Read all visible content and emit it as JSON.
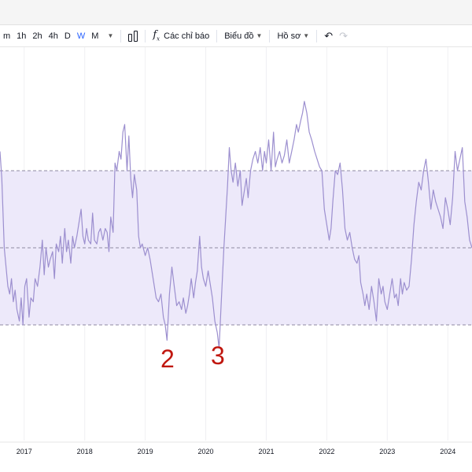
{
  "toolbar": {
    "intervals": [
      {
        "label": "m",
        "active": false
      },
      {
        "label": "1h",
        "active": false
      },
      {
        "label": "2h",
        "active": false
      },
      {
        "label": "4h",
        "active": false
      },
      {
        "label": "D",
        "active": false
      },
      {
        "label": "W",
        "active": true
      },
      {
        "label": "M",
        "active": false
      }
    ],
    "indicators_label": "Các chỉ báo",
    "chart_label": "Biểu đồ",
    "profile_label": "Hồ sơ"
  },
  "annotations": {
    "first": "2",
    "second": "3"
  },
  "colors": {
    "line": "#9c8fcf",
    "band_fill": "#ede9fa",
    "band_line": "#8f8aa3",
    "accent": "#2962ff",
    "annotation": "#c0170f"
  },
  "chart_data": {
    "type": "line",
    "x_axis_labels": [
      "2017",
      "2018",
      "2019",
      "2020",
      "2021",
      "2022",
      "2023",
      "2024"
    ],
    "x_range": [
      2016.6,
      2024.4
    ],
    "y_range": [
      0,
      100
    ],
    "bands": {
      "upper": 70,
      "middle": 50,
      "lower": 30
    },
    "series": [
      {
        "points": [
          [
            2016.6,
            75
          ],
          [
            2016.63,
            68
          ],
          [
            2016.67,
            50
          ],
          [
            2016.7,
            45
          ],
          [
            2016.73,
            40
          ],
          [
            2016.76,
            38
          ],
          [
            2016.79,
            42
          ],
          [
            2016.82,
            36
          ],
          [
            2016.85,
            39
          ],
          [
            2016.88,
            34
          ],
          [
            2016.92,
            31
          ],
          [
            2016.95,
            37
          ],
          [
            2016.98,
            30
          ],
          [
            2017.01,
            40
          ],
          [
            2017.04,
            42
          ],
          [
            2017.08,
            32
          ],
          [
            2017.11,
            37
          ],
          [
            2017.15,
            36
          ],
          [
            2017.18,
            42
          ],
          [
            2017.22,
            40
          ],
          [
            2017.26,
            45
          ],
          [
            2017.3,
            52
          ],
          [
            2017.33,
            43
          ],
          [
            2017.36,
            50
          ],
          [
            2017.4,
            45
          ],
          [
            2017.43,
            47
          ],
          [
            2017.47,
            49
          ],
          [
            2017.5,
            42
          ],
          [
            2017.53,
            51
          ],
          [
            2017.57,
            49
          ],
          [
            2017.6,
            53
          ],
          [
            2017.63,
            46
          ],
          [
            2017.67,
            55
          ],
          [
            2017.7,
            49
          ],
          [
            2017.73,
            52
          ],
          [
            2017.77,
            46
          ],
          [
            2017.8,
            53
          ],
          [
            2017.83,
            50
          ],
          [
            2017.87,
            53
          ],
          [
            2017.9,
            56
          ],
          [
            2017.94,
            60
          ],
          [
            2017.97,
            53
          ],
          [
            2018.0,
            51
          ],
          [
            2018.03,
            55
          ],
          [
            2018.06,
            52
          ],
          [
            2018.1,
            51
          ],
          [
            2018.13,
            59
          ],
          [
            2018.16,
            52
          ],
          [
            2018.2,
            51
          ],
          [
            2018.23,
            54
          ],
          [
            2018.26,
            55
          ],
          [
            2018.3,
            52
          ],
          [
            2018.34,
            55
          ],
          [
            2018.37,
            54
          ],
          [
            2018.4,
            49
          ],
          [
            2018.43,
            58
          ],
          [
            2018.47,
            54
          ],
          [
            2018.5,
            72
          ],
          [
            2018.53,
            70
          ],
          [
            2018.57,
            75
          ],
          [
            2018.6,
            73
          ],
          [
            2018.63,
            80
          ],
          [
            2018.66,
            82
          ],
          [
            2018.7,
            70
          ],
          [
            2018.73,
            79
          ],
          [
            2018.76,
            68
          ],
          [
            2018.79,
            63
          ],
          [
            2018.82,
            69
          ],
          [
            2018.86,
            65
          ],
          [
            2018.89,
            53
          ],
          [
            2018.92,
            50
          ],
          [
            2018.95,
            51
          ],
          [
            2019.0,
            48
          ],
          [
            2019.04,
            50
          ],
          [
            2019.08,
            47
          ],
          [
            2019.11,
            44
          ],
          [
            2019.15,
            40
          ],
          [
            2019.18,
            37
          ],
          [
            2019.22,
            36
          ],
          [
            2019.26,
            38
          ],
          [
            2019.3,
            32
          ],
          [
            2019.33,
            30
          ],
          [
            2019.36,
            26
          ],
          [
            2019.4,
            38
          ],
          [
            2019.44,
            45
          ],
          [
            2019.48,
            40
          ],
          [
            2019.52,
            35
          ],
          [
            2019.56,
            36
          ],
          [
            2019.6,
            34
          ],
          [
            2019.63,
            37
          ],
          [
            2019.67,
            33
          ],
          [
            2019.7,
            35
          ],
          [
            2019.73,
            38
          ],
          [
            2019.76,
            42
          ],
          [
            2019.8,
            37
          ],
          [
            2019.83,
            41
          ],
          [
            2019.86,
            44
          ],
          [
            2019.9,
            53
          ],
          [
            2019.93,
            45
          ],
          [
            2019.96,
            42
          ],
          [
            2020.0,
            40
          ],
          [
            2020.04,
            44
          ],
          [
            2020.08,
            40
          ],
          [
            2020.11,
            37
          ],
          [
            2020.15,
            31
          ],
          [
            2020.19,
            28
          ],
          [
            2020.22,
            24
          ],
          [
            2020.26,
            37
          ],
          [
            2020.3,
            50
          ],
          [
            2020.33,
            58
          ],
          [
            2020.36,
            66
          ],
          [
            2020.39,
            76
          ],
          [
            2020.42,
            70
          ],
          [
            2020.45,
            67
          ],
          [
            2020.49,
            72
          ],
          [
            2020.53,
            66
          ],
          [
            2020.57,
            70
          ],
          [
            2020.6,
            61
          ],
          [
            2020.63,
            64
          ],
          [
            2020.67,
            68
          ],
          [
            2020.7,
            63
          ],
          [
            2020.74,
            70
          ],
          [
            2020.78,
            73
          ],
          [
            2020.82,
            75
          ],
          [
            2020.86,
            72
          ],
          [
            2020.9,
            76
          ],
          [
            2020.94,
            70
          ],
          [
            2020.97,
            75
          ],
          [
            2021.0,
            72
          ],
          [
            2021.04,
            78
          ],
          [
            2021.08,
            70
          ],
          [
            2021.12,
            80
          ],
          [
            2021.15,
            71
          ],
          [
            2021.18,
            73
          ],
          [
            2021.22,
            75
          ],
          [
            2021.26,
            72
          ],
          [
            2021.3,
            74
          ],
          [
            2021.34,
            78
          ],
          [
            2021.38,
            72
          ],
          [
            2021.42,
            75
          ],
          [
            2021.46,
            78
          ],
          [
            2021.5,
            82
          ],
          [
            2021.53,
            80
          ],
          [
            2021.57,
            83
          ],
          [
            2021.6,
            85
          ],
          [
            2021.63,
            88
          ],
          [
            2021.67,
            85
          ],
          [
            2021.71,
            80
          ],
          [
            2021.75,
            78
          ],
          [
            2021.8,
            75
          ],
          [
            2021.84,
            73
          ],
          [
            2021.88,
            71
          ],
          [
            2021.92,
            70
          ],
          [
            2021.96,
            60
          ],
          [
            2022.0,
            56
          ],
          [
            2022.04,
            52
          ],
          [
            2022.07,
            55
          ],
          [
            2022.1,
            62
          ],
          [
            2022.14,
            70
          ],
          [
            2022.18,
            69
          ],
          [
            2022.22,
            72
          ],
          [
            2022.26,
            65
          ],
          [
            2022.3,
            55
          ],
          [
            2022.34,
            52
          ],
          [
            2022.38,
            54
          ],
          [
            2022.42,
            50
          ],
          [
            2022.46,
            47
          ],
          [
            2022.5,
            46
          ],
          [
            2022.53,
            48
          ],
          [
            2022.56,
            41
          ],
          [
            2022.6,
            38
          ],
          [
            2022.63,
            35
          ],
          [
            2022.66,
            38
          ],
          [
            2022.7,
            34
          ],
          [
            2022.74,
            40
          ],
          [
            2022.78,
            36
          ],
          [
            2022.82,
            31
          ],
          [
            2022.86,
            42
          ],
          [
            2022.9,
            38
          ],
          [
            2022.93,
            40
          ],
          [
            2022.96,
            36
          ],
          [
            2023.0,
            34
          ],
          [
            2023.04,
            38
          ],
          [
            2023.08,
            42
          ],
          [
            2023.12,
            37
          ],
          [
            2023.15,
            38
          ],
          [
            2023.18,
            35
          ],
          [
            2023.22,
            42
          ],
          [
            2023.25,
            38
          ],
          [
            2023.28,
            41
          ],
          [
            2023.32,
            39
          ],
          [
            2023.36,
            40
          ],
          [
            2023.4,
            47
          ],
          [
            2023.44,
            56
          ],
          [
            2023.48,
            62
          ],
          [
            2023.52,
            67
          ],
          [
            2023.56,
            65
          ],
          [
            2023.6,
            70
          ],
          [
            2023.64,
            73
          ],
          [
            2023.68,
            67
          ],
          [
            2023.72,
            60
          ],
          [
            2023.76,
            65
          ],
          [
            2023.8,
            62
          ],
          [
            2023.84,
            60
          ],
          [
            2023.88,
            58
          ],
          [
            2023.92,
            55
          ],
          [
            2023.96,
            63
          ],
          [
            2024.0,
            60
          ],
          [
            2024.04,
            56
          ],
          [
            2024.08,
            63
          ],
          [
            2024.12,
            75
          ],
          [
            2024.16,
            70
          ],
          [
            2024.2,
            73
          ],
          [
            2024.24,
            76
          ],
          [
            2024.28,
            62
          ],
          [
            2024.32,
            58
          ],
          [
            2024.36,
            52
          ],
          [
            2024.4,
            50
          ]
        ]
      }
    ]
  }
}
